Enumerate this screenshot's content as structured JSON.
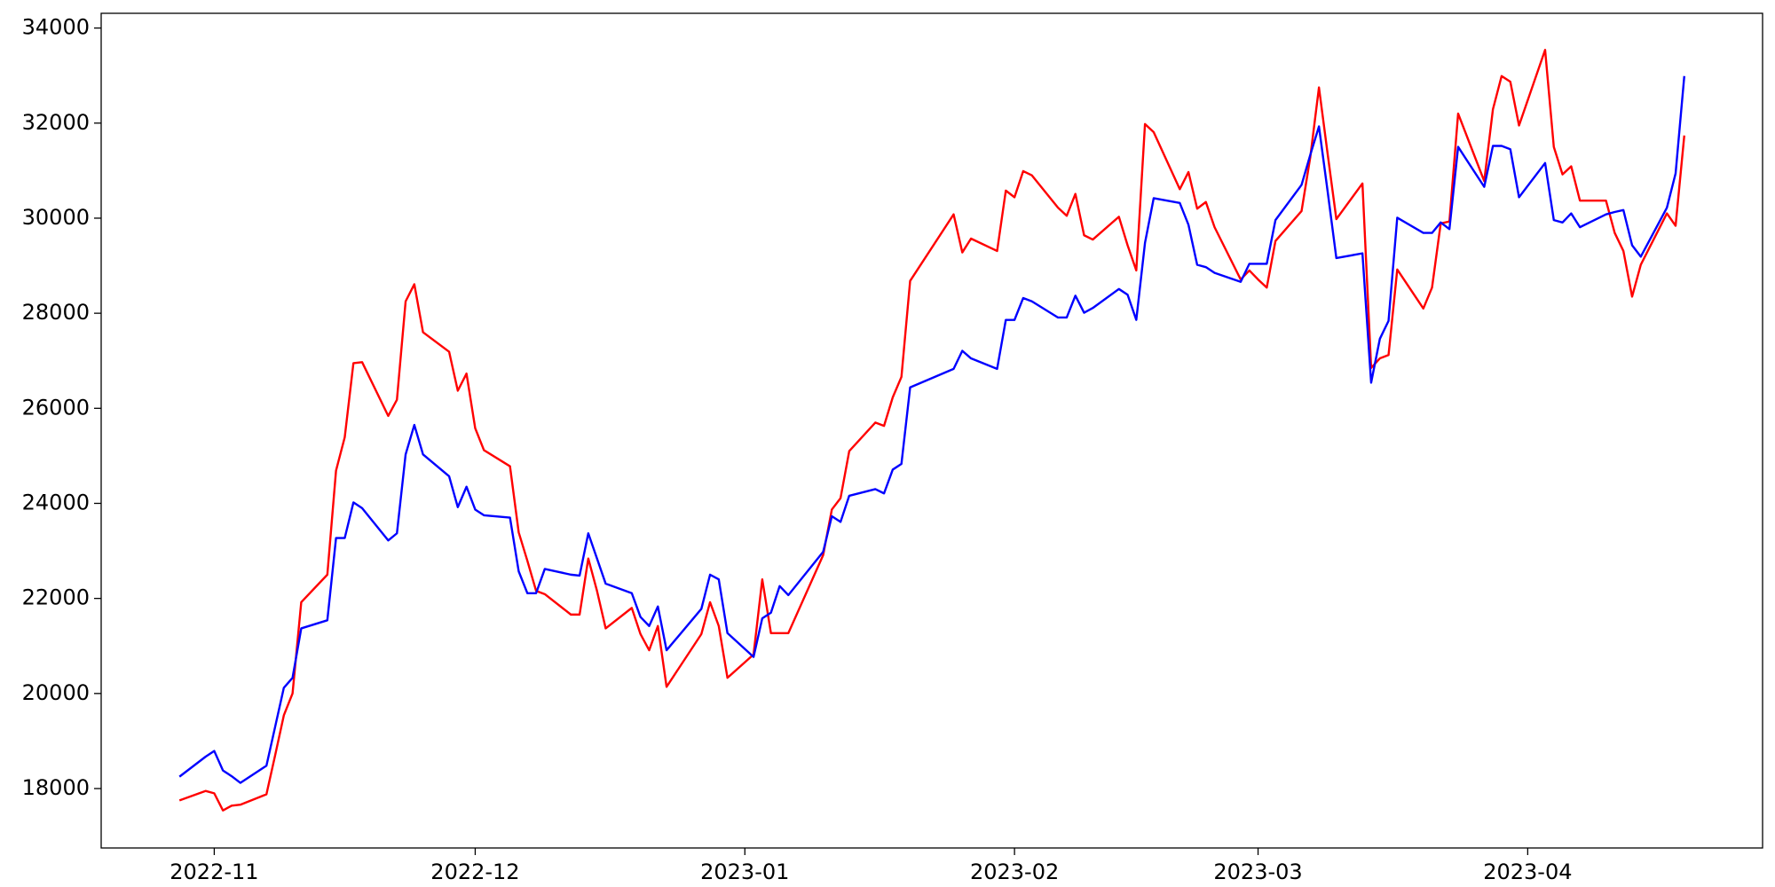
{
  "chart_data": {
    "type": "line",
    "x": [
      "2022-10-28",
      "2022-10-31",
      "2022-11-01",
      "2022-11-02",
      "2022-11-03",
      "2022-11-04",
      "2022-11-07",
      "2022-11-08",
      "2022-11-09",
      "2022-11-10",
      "2022-11-11",
      "2022-11-14",
      "2022-11-15",
      "2022-11-16",
      "2022-11-17",
      "2022-11-18",
      "2022-11-21",
      "2022-11-22",
      "2022-11-23",
      "2022-11-24",
      "2022-11-25",
      "2022-11-28",
      "2022-11-29",
      "2022-11-30",
      "2022-12-01",
      "2022-12-02",
      "2022-12-05",
      "2022-12-06",
      "2022-12-07",
      "2022-12-08",
      "2022-12-09",
      "2022-12-12",
      "2022-12-13",
      "2022-12-14",
      "2022-12-15",
      "2022-12-16",
      "2022-12-19",
      "2022-12-20",
      "2022-12-21",
      "2022-12-22",
      "2022-12-23",
      "2022-12-27",
      "2022-12-28",
      "2022-12-29",
      "2022-12-30",
      "2023-01-02",
      "2023-01-03",
      "2023-01-04",
      "2023-01-05",
      "2023-01-06",
      "2023-01-10",
      "2023-01-11",
      "2023-01-12",
      "2023-01-13",
      "2023-01-16",
      "2023-01-17",
      "2023-01-18",
      "2023-01-19",
      "2023-01-20",
      "2023-01-25",
      "2023-01-26",
      "2023-01-27",
      "2023-01-30",
      "2023-01-31",
      "2023-02-01",
      "2023-02-02",
      "2023-02-03",
      "2023-02-06",
      "2023-02-07",
      "2023-02-08",
      "2023-02-09",
      "2023-02-10",
      "2023-02-13",
      "2023-02-14",
      "2023-02-15",
      "2023-02-16",
      "2023-02-17",
      "2023-02-20",
      "2023-02-21",
      "2023-02-22",
      "2023-02-23",
      "2023-02-24",
      "2023-02-27",
      "2023-02-28",
      "2023-03-01",
      "2023-03-02",
      "2023-03-03",
      "2023-03-06",
      "2023-03-07",
      "2023-03-08",
      "2023-03-09",
      "2023-03-10",
      "2023-03-13",
      "2023-03-14",
      "2023-03-15",
      "2023-03-16",
      "2023-03-17",
      "2023-03-20",
      "2023-03-21",
      "2023-03-22",
      "2023-03-23",
      "2023-03-24",
      "2023-03-27",
      "2023-03-28",
      "2023-03-29",
      "2023-03-30",
      "2023-03-31",
      "2023-04-03",
      "2023-04-04",
      "2023-04-05",
      "2023-04-06",
      "2023-04-07",
      "2023-04-10",
      "2023-04-11",
      "2023-04-12",
      "2023-04-13",
      "2023-04-14",
      "2023-04-17",
      "2023-04-18",
      "2023-04-19"
    ],
    "series": [
      {
        "color": "red",
        "values": [
          17750,
          17950,
          17900,
          17540,
          17640,
          17660,
          17880,
          18700,
          19540,
          20000,
          21920,
          22500,
          24690,
          25390,
          26950,
          26970,
          25840,
          26180,
          28250,
          28610,
          27600,
          27190,
          26370,
          26730,
          25580,
          25120,
          24780,
          23390,
          22790,
          22160,
          22090,
          21660,
          21660,
          22840,
          22160,
          21370,
          21800,
          21250,
          20910,
          21420,
          20140,
          21250,
          21920,
          21420,
          20330,
          20820,
          22400,
          21270,
          21270,
          21270,
          22910,
          23870,
          24110,
          25100,
          25700,
          25630,
          26230,
          26660,
          28680,
          30080,
          29280,
          29570,
          29310,
          30580,
          30440,
          30990,
          30900,
          30220,
          30050,
          30510,
          29640,
          29550,
          30030,
          29430,
          28900,
          31980,
          31810,
          30610,
          30970,
          30200,
          30340,
          29810,
          28710,
          28900,
          28710,
          28540,
          29520,
          30150,
          31280,
          32750,
          31350,
          29980,
          30730,
          26850,
          27050,
          27120,
          28920,
          28100,
          28540,
          29890,
          29930,
          32200,
          30780,
          32290,
          32990,
          32870,
          31950,
          33540,
          31500,
          30920,
          31090,
          30370,
          30370,
          29690,
          29310,
          28350,
          29020,
          30100,
          29840,
          31740
        ]
      },
      {
        "color": "blue",
        "values": [
          18250,
          18670,
          18790,
          18380,
          18260,
          18120,
          18480,
          19300,
          20120,
          20330,
          21370,
          21540,
          23270,
          23270,
          24020,
          23900,
          23220,
          23370,
          25030,
          25650,
          25030,
          24570,
          23920,
          24350,
          23870,
          23750,
          23700,
          22570,
          22110,
          22110,
          22620,
          22500,
          22480,
          23370,
          22840,
          22310,
          22110,
          21610,
          21420,
          21830,
          20910,
          21780,
          22500,
          22400,
          21270,
          20770,
          21580,
          21700,
          22260,
          22070,
          22980,
          23730,
          23610,
          24160,
          24300,
          24210,
          24710,
          24830,
          26440,
          26830,
          27210,
          27050,
          26830,
          27860,
          27860,
          28320,
          28250,
          27910,
          27910,
          28370,
          28010,
          28110,
          28510,
          28390,
          27860,
          29480,
          30420,
          30320,
          29860,
          29020,
          28970,
          28850,
          28660,
          29040,
          29040,
          29040,
          29960,
          30700,
          31330,
          31930,
          30560,
          29160,
          29260,
          26540,
          27460,
          27840,
          30010,
          29690,
          29690,
          29910,
          29770,
          31500,
          30660,
          31520,
          31520,
          31450,
          30440,
          31160,
          29960,
          29910,
          30100,
          29810,
          30080,
          30130,
          30170,
          29430,
          29190,
          30220,
          30940,
          32990
        ]
      }
    ],
    "xlim": [
      "2022-10-19",
      "2023-04-28"
    ],
    "xticks": [
      {
        "value": "2022-11-01",
        "label": "2022-11"
      },
      {
        "value": "2022-12-01",
        "label": "2022-12"
      },
      {
        "value": "2023-01-01",
        "label": "2023-01"
      },
      {
        "value": "2023-02-01",
        "label": "2023-02"
      },
      {
        "value": "2023-03-01",
        "label": "2023-03"
      },
      {
        "value": "2023-04-01",
        "label": "2023-04"
      }
    ],
    "ylim": [
      16750,
      34310
    ],
    "yticks": [
      18000,
      20000,
      22000,
      24000,
      26000,
      28000,
      30000,
      32000,
      34000
    ],
    "grid": false
  }
}
